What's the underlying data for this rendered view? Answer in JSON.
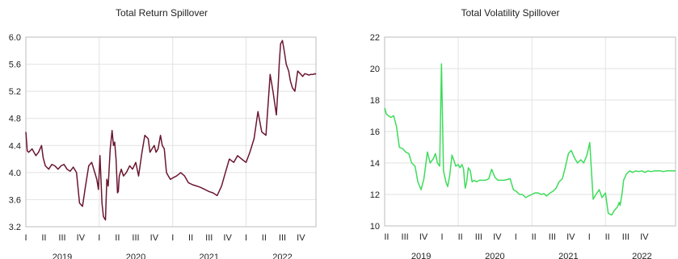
{
  "chart_data": [
    {
      "type": "line",
      "title": "Total Return Spillover",
      "ylim": [
        3.2,
        6.0
      ],
      "y_ticks": [
        "3.2",
        "3.6",
        "4.0",
        "4.4",
        "4.8",
        "5.2",
        "5.6",
        "6.0"
      ],
      "xlim": [
        "2019-01-01",
        "2022-12-15"
      ],
      "grid": true,
      "line_color": "#6b1630",
      "quarter_labels": [
        "I",
        "II",
        "III",
        "IV",
        "I",
        "II",
        "III",
        "IV",
        "I",
        "II",
        "III",
        "IV",
        "I",
        "II",
        "III",
        "IV"
      ],
      "year_labels": [
        "2019",
        "2020",
        "2021",
        "2022"
      ],
      "series": [
        {
          "x": [
            "2019-01-01",
            "2019-01-08",
            "2019-01-15",
            "2019-02-01",
            "2019-02-20",
            "2019-03-05",
            "2019-03-20",
            "2019-03-28",
            "2019-04-08",
            "2019-04-25",
            "2019-05-10",
            "2019-05-25",
            "2019-06-10",
            "2019-06-25",
            "2019-07-10",
            "2019-07-25",
            "2019-08-10",
            "2019-08-25",
            "2019-09-10",
            "2019-09-25",
            "2019-10-10",
            "2019-10-25",
            "2019-11-10",
            "2019-11-25",
            "2019-12-10",
            "2019-12-20",
            "2019-12-28",
            "2020-01-05",
            "2020-01-15",
            "2020-01-22",
            "2020-02-01",
            "2020-02-08",
            "2020-02-15",
            "2020-02-25",
            "2020-03-05",
            "2020-03-12",
            "2020-03-18",
            "2020-03-25",
            "2020-04-01",
            "2020-04-05",
            "2020-04-10",
            "2020-04-20",
            "2020-05-01",
            "2020-05-15",
            "2020-06-01",
            "2020-06-15",
            "2020-07-01",
            "2020-07-15",
            "2020-08-01",
            "2020-08-15",
            "2020-09-01",
            "2020-09-10",
            "2020-09-20",
            "2020-10-01",
            "2020-10-10",
            "2020-10-20",
            "2020-11-01",
            "2020-11-10",
            "2020-11-20",
            "2020-12-01",
            "2020-12-10",
            "2020-12-20",
            "2021-01-01",
            "2021-01-20",
            "2021-02-10",
            "2021-03-01",
            "2021-03-20",
            "2021-04-10",
            "2021-05-01",
            "2021-05-20",
            "2021-06-10",
            "2021-07-01",
            "2021-07-20",
            "2021-08-10",
            "2021-09-01",
            "2021-09-20",
            "2021-10-10",
            "2021-11-01",
            "2021-11-20",
            "2021-12-10",
            "2022-01-01",
            "2022-01-20",
            "2022-02-10",
            "2022-03-01",
            "2022-03-20",
            "2022-04-10",
            "2022-05-01",
            "2022-05-15",
            "2022-06-01",
            "2022-06-10",
            "2022-06-15",
            "2022-06-22",
            "2022-07-01",
            "2022-07-10",
            "2022-07-20",
            "2022-08-01",
            "2022-08-10",
            "2022-08-20",
            "2022-09-01",
            "2022-09-15",
            "2022-10-01",
            "2022-10-10",
            "2022-10-20",
            "2022-11-01",
            "2022-11-10",
            "2022-11-20",
            "2022-12-01",
            "2022-12-10",
            "2022-12-15"
          ],
          "y": [
            4.6,
            4.32,
            4.3,
            4.35,
            4.25,
            4.3,
            4.4,
            4.22,
            4.1,
            4.05,
            4.12,
            4.1,
            4.05,
            4.1,
            4.12,
            4.05,
            4.02,
            4.08,
            4.0,
            3.55,
            3.5,
            3.8,
            4.1,
            4.15,
            4.0,
            3.9,
            3.75,
            4.25,
            3.55,
            3.35,
            3.3,
            3.9,
            3.8,
            4.35,
            4.62,
            4.4,
            4.45,
            4.2,
            3.7,
            3.72,
            3.95,
            4.05,
            3.95,
            4.0,
            4.1,
            4.05,
            4.15,
            3.95,
            4.3,
            4.55,
            4.5,
            4.3,
            4.35,
            4.4,
            4.3,
            4.35,
            4.55,
            4.4,
            4.35,
            4.0,
            3.95,
            3.9,
            3.92,
            3.95,
            4.0,
            3.95,
            3.85,
            3.82,
            3.8,
            3.78,
            3.75,
            3.72,
            3.7,
            3.66,
            3.8,
            4.0,
            4.2,
            4.15,
            4.25,
            4.2,
            4.15,
            4.3,
            4.5,
            4.9,
            4.6,
            4.55,
            5.45,
            5.2,
            4.85,
            5.3,
            5.6,
            5.9,
            5.95,
            5.8,
            5.6,
            5.5,
            5.35,
            5.25,
            5.2,
            5.5,
            5.45,
            5.42,
            5.46,
            5.45,
            5.44,
            5.45,
            5.45,
            5.46,
            5.45
          ]
        }
      ]
    },
    {
      "type": "line",
      "title": "Total Volatility Spillover",
      "ylim": [
        10,
        22
      ],
      "y_ticks": [
        "10",
        "12",
        "14",
        "16",
        "18",
        "20",
        "22"
      ],
      "xlim": [
        "2019-01-01",
        "2022-12-15"
      ],
      "grid": true,
      "line_color": "#3ddc5a",
      "quarter_labels": [
        "II",
        "III",
        "IV",
        "I",
        "II",
        "III",
        "IV",
        "I",
        "II",
        "III",
        "IV",
        "I",
        "II",
        "III",
        "IV"
      ],
      "year_labels": [
        "2019",
        "2020",
        "2021",
        "2022"
      ],
      "series": [
        {
          "x": [
            "2019-01-01",
            "2019-01-10",
            "2019-01-20",
            "2019-02-01",
            "2019-02-15",
            "2019-03-01",
            "2019-03-15",
            "2019-04-01",
            "2019-04-15",
            "2019-05-01",
            "2019-05-15",
            "2019-06-01",
            "2019-06-15",
            "2019-07-01",
            "2019-07-15",
            "2019-08-01",
            "2019-08-15",
            "2019-09-01",
            "2019-09-10",
            "2019-09-20",
            "2019-10-01",
            "2019-10-10",
            "2019-10-20",
            "2019-11-01",
            "2019-11-10",
            "2019-11-20",
            "2019-12-01",
            "2019-12-10",
            "2019-12-20",
            "2020-01-01",
            "2020-01-10",
            "2020-01-20",
            "2020-01-28",
            "2020-02-01",
            "2020-02-05",
            "2020-02-12",
            "2020-02-20",
            "2020-03-01",
            "2020-03-10",
            "2020-03-20",
            "2020-04-01",
            "2020-04-15",
            "2020-05-01",
            "2020-05-15",
            "2020-06-01",
            "2020-06-15",
            "2020-07-01",
            "2020-07-15",
            "2020-08-01",
            "2020-08-15",
            "2020-09-01",
            "2020-09-15",
            "2020-10-01",
            "2020-10-15",
            "2020-11-01",
            "2020-11-15",
            "2020-12-01",
            "2020-12-15",
            "2021-01-01",
            "2021-01-15",
            "2021-02-01",
            "2021-02-15",
            "2021-03-01",
            "2021-03-15",
            "2021-04-01",
            "2021-04-15",
            "2021-05-01",
            "2021-05-15",
            "2021-06-01",
            "2021-06-15",
            "2021-07-01",
            "2021-07-15",
            "2021-08-01",
            "2021-08-15",
            "2021-09-01",
            "2021-09-15",
            "2021-10-01",
            "2021-10-15",
            "2021-11-01",
            "2021-11-15",
            "2021-12-01",
            "2021-12-15",
            "2022-01-01",
            "2022-01-15",
            "2022-02-01",
            "2022-02-15",
            "2022-03-01",
            "2022-03-10",
            "2022-03-15",
            "2022-03-25",
            "2022-04-01",
            "2022-04-15",
            "2022-05-01",
            "2022-05-15",
            "2022-06-01",
            "2022-06-15",
            "2022-07-01",
            "2022-07-15",
            "2022-08-01",
            "2022-08-15",
            "2022-09-01",
            "2022-09-15",
            "2022-10-01",
            "2022-10-15",
            "2022-11-01",
            "2022-11-15",
            "2022-12-01",
            "2022-12-15"
          ],
          "y": [
            17.5,
            17.1,
            17.0,
            16.9,
            17.0,
            16.3,
            15.0,
            14.9,
            14.7,
            14.6,
            14.0,
            13.8,
            12.8,
            12.3,
            13.0,
            14.7,
            14.0,
            14.3,
            14.6,
            14.0,
            13.8,
            20.3,
            13.5,
            12.8,
            12.5,
            13.2,
            14.5,
            14.2,
            13.8,
            13.9,
            13.7,
            13.9,
            13.6,
            12.9,
            12.4,
            12.8,
            13.7,
            13.5,
            12.8,
            12.9,
            12.8,
            12.9,
            12.9,
            12.9,
            13.0,
            13.6,
            13.1,
            12.9,
            12.9,
            12.9,
            12.95,
            13.0,
            12.3,
            12.2,
            12.0,
            12.0,
            11.8,
            11.9,
            12.0,
            12.1,
            12.1,
            12.0,
            12.05,
            11.9,
            12.1,
            12.2,
            12.4,
            12.8,
            13.0,
            13.7,
            14.6,
            14.8,
            14.3,
            14.0,
            14.2,
            14.0,
            14.5,
            15.3,
            11.7,
            12.0,
            12.3,
            11.8,
            12.1,
            10.8,
            10.7,
            11.0,
            11.2,
            11.5,
            11.3,
            12.1,
            12.9,
            13.3,
            13.5,
            13.4,
            13.5,
            13.45,
            13.5,
            13.4,
            13.5,
            13.45,
            13.5,
            13.5,
            13.5,
            13.45,
            13.5,
            13.5,
            13.5,
            13.5
          ]
        }
      ]
    }
  ]
}
